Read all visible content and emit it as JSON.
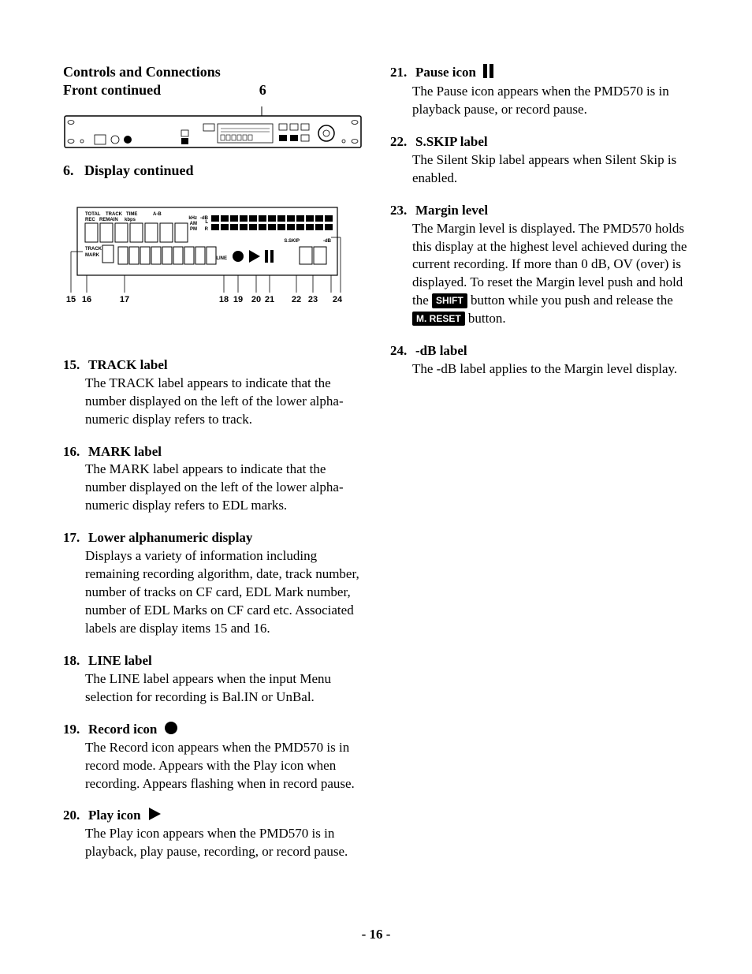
{
  "header": {
    "line1": "Controls and Connections",
    "line2": "Front continued",
    "callout": "6"
  },
  "section6": {
    "num": "6.",
    "title": "Display continued"
  },
  "display_diagram": {
    "top_labels": [
      "TOTAL",
      "TRACK",
      "TIME",
      "A-B"
    ],
    "top_labels2": [
      "REC",
      "REMAIN",
      "kbps"
    ],
    "right_labels": {
      "khz": "kHz",
      "db": "-dB",
      "L": "L",
      "R": "R",
      "AM": "AM",
      "PM": "PM"
    },
    "sskip": "S.SKIP",
    "mdb": "-dB",
    "track": "TRACK",
    "mark": "MARK",
    "line": "LINE",
    "callouts": [
      "15",
      "16",
      "17",
      "18",
      "19",
      "20",
      "21",
      "22",
      "23",
      "24"
    ],
    "meter_segments": 13,
    "alnum_segments": 9,
    "margin_segments": 2,
    "colors": {
      "stroke": "#000000",
      "fill_dark": "#000000",
      "fill_light": "#ffffff"
    }
  },
  "left_items": [
    {
      "num": "15.",
      "label": "TRACK label",
      "body": "The TRACK label appears to indicate that the number displayed on the left of the lower alpha-numeric display refers to track."
    },
    {
      "num": "16.",
      "label": "MARK label",
      "body": "The MARK label appears to indicate that the number displayed on the left of the lower alpha-numeric display refers to EDL marks."
    },
    {
      "num": "17.",
      "label": "Lower alphanumeric display",
      "body": "Displays a variety of information including remaining recording algorithm, date, track number, number of tracks on CF card, EDL Mark number, number of EDL Marks on CF card etc. Associated labels are display items 15 and 16."
    },
    {
      "num": "18.",
      "label": "LINE label",
      "body": "The LINE label appears when the input Menu selection for recording is Bal.IN or UnBal."
    },
    {
      "num": "19.",
      "label": "Record icon",
      "icon": "record",
      "body": "The Record icon appears when the PMD570 is in record mode. Appears with the Play icon when recording. Appears flashing when in record pause."
    },
    {
      "num": "20.",
      "label": "Play icon",
      "icon": "play",
      "body": "The Play icon appears when the PMD570 is in playback, play pause, recording, or record pause."
    }
  ],
  "right_items": [
    {
      "num": "21.",
      "label": "Pause icon",
      "icon": "pause",
      "body": "The Pause icon appears when the PMD570 is in playback pause, or record pause."
    },
    {
      "num": "22.",
      "label": "S.SKIP label",
      "body": "The Silent Skip label appears when Silent Skip is enabled."
    },
    {
      "num": "23.",
      "label": "Margin level",
      "body_parts": [
        "The Margin level is displayed. The PMD570 holds this display at the highest level achieved during the current recording. If more than 0 dB, OV (over) is displayed. To reset the Margin level push and hold the ",
        " button while you push and release the ",
        " button."
      ],
      "btn1": "SHIFT",
      "btn2": "M. RESET"
    },
    {
      "num": "24.",
      "label": "-dB label",
      "body": "The -dB label applies to the Margin level display."
    }
  ],
  "page_number": "- 16 -"
}
